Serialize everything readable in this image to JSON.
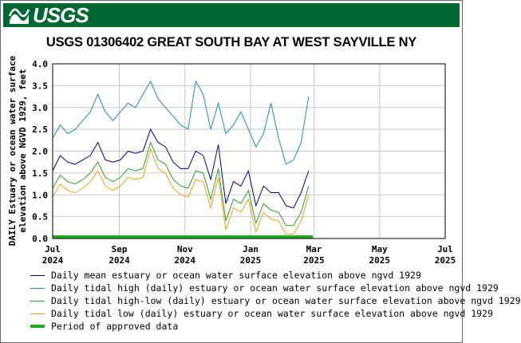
{
  "header": {
    "logo_text": "USGS",
    "logo_icon": "usgs-wave-icon",
    "background_color": "#006633"
  },
  "chart_data": {
    "type": "line",
    "title": "USGS 01306402 GREAT SOUTH BAY AT WEST SAYVILLE NY",
    "ylabel_line1": "DAILY Estuary or ocean water surface",
    "ylabel_line2": "elevation above NGVD 1929, feet",
    "ylim": [
      0.0,
      4.0
    ],
    "yticks": [
      0.0,
      0.5,
      1.0,
      1.5,
      2.0,
      2.5,
      3.0,
      3.5,
      4.0
    ],
    "ytick_labels": [
      "0.0",
      "0.5",
      "1.0",
      "1.5",
      "2.0",
      "2.5",
      "3.0",
      "3.5",
      "4.0"
    ],
    "xlim": [
      "2024-07-01",
      "2025-07-01"
    ],
    "xticks": [
      {
        "date": "2024-07-01",
        "month": "Jul",
        "year": "2024"
      },
      {
        "date": "2024-09-01",
        "month": "Sep",
        "year": "2024"
      },
      {
        "date": "2024-11-01",
        "month": "Nov",
        "year": "2024"
      },
      {
        "date": "2025-01-01",
        "month": "Jan",
        "year": "2025"
      },
      {
        "date": "2025-03-01",
        "month": "Mar",
        "year": "2025"
      },
      {
        "date": "2025-05-01",
        "month": "May",
        "year": "2025"
      },
      {
        "date": "2025-07-01",
        "month": "Jul",
        "year": "2025"
      }
    ],
    "grid": true,
    "legend_position": "bottom",
    "series": [
      {
        "name": "Daily mean estuary or ocean water surface elevation above ngvd 1929",
        "color": "#00008b",
        "x": [
          "2024-07-01",
          "2024-07-08",
          "2024-07-15",
          "2024-07-22",
          "2024-07-29",
          "2024-08-05",
          "2024-08-12",
          "2024-08-19",
          "2024-08-26",
          "2024-09-02",
          "2024-09-09",
          "2024-09-16",
          "2024-09-23",
          "2024-09-30",
          "2024-10-07",
          "2024-10-14",
          "2024-10-21",
          "2024-10-28",
          "2024-11-04",
          "2024-11-11",
          "2024-11-18",
          "2024-11-25",
          "2024-12-02",
          "2024-12-09",
          "2024-12-16",
          "2024-12-23",
          "2024-12-30",
          "2025-01-06",
          "2025-01-13",
          "2025-01-20",
          "2025-01-27",
          "2025-02-03",
          "2025-02-10",
          "2025-02-17",
          "2025-02-24"
        ],
        "y": [
          1.55,
          1.9,
          1.75,
          1.7,
          1.8,
          1.9,
          2.2,
          1.8,
          1.75,
          1.8,
          2.0,
          1.95,
          2.0,
          2.5,
          2.2,
          2.1,
          1.75,
          1.6,
          1.6,
          2.0,
          1.9,
          1.35,
          2.15,
          0.8,
          1.3,
          1.2,
          1.55,
          0.75,
          1.2,
          1.05,
          1.05,
          0.75,
          0.7,
          1.05,
          1.55
        ]
      },
      {
        "name": "Daily tidal high (daily) estuary or ocean water surface elevation above ngvd 1929",
        "color": "#1e88c8",
        "x": [
          "2024-07-01",
          "2024-07-08",
          "2024-07-15",
          "2024-07-22",
          "2024-07-29",
          "2024-08-05",
          "2024-08-12",
          "2024-08-19",
          "2024-08-26",
          "2024-09-02",
          "2024-09-09",
          "2024-09-16",
          "2024-09-23",
          "2024-09-30",
          "2024-10-07",
          "2024-10-14",
          "2024-10-21",
          "2024-10-28",
          "2024-11-04",
          "2024-11-11",
          "2024-11-18",
          "2024-11-25",
          "2024-12-02",
          "2024-12-09",
          "2024-12-16",
          "2024-12-23",
          "2024-12-30",
          "2025-01-06",
          "2025-01-13",
          "2025-01-20",
          "2025-01-27",
          "2025-02-03",
          "2025-02-10",
          "2025-02-17",
          "2025-02-24"
        ],
        "y": [
          2.3,
          2.6,
          2.4,
          2.5,
          2.7,
          2.9,
          3.3,
          2.9,
          2.7,
          2.9,
          3.1,
          3.0,
          3.3,
          3.6,
          3.2,
          3.0,
          2.8,
          2.6,
          2.5,
          3.6,
          3.3,
          2.5,
          3.1,
          2.4,
          2.6,
          2.9,
          2.5,
          2.1,
          2.4,
          3.1,
          2.3,
          1.7,
          1.8,
          2.2,
          3.25
        ]
      },
      {
        "name": "Daily tidal high-low (daily) estuary or ocean water surface elevation above ngvd 1929",
        "color": "#2e9e2e",
        "x": [
          "2024-07-01",
          "2024-07-08",
          "2024-07-15",
          "2024-07-22",
          "2024-07-29",
          "2024-08-05",
          "2024-08-12",
          "2024-08-19",
          "2024-08-26",
          "2024-09-02",
          "2024-09-09",
          "2024-09-16",
          "2024-09-23",
          "2024-09-30",
          "2024-10-07",
          "2024-10-14",
          "2024-10-21",
          "2024-10-28",
          "2024-11-04",
          "2024-11-11",
          "2024-11-18",
          "2024-11-25",
          "2024-12-02",
          "2024-12-09",
          "2024-12-16",
          "2024-12-23",
          "2024-12-30",
          "2025-01-06",
          "2025-01-13",
          "2025-01-20",
          "2025-01-27",
          "2025-02-03",
          "2025-02-10",
          "2025-02-17",
          "2025-02-24"
        ],
        "y": [
          1.15,
          1.45,
          1.3,
          1.25,
          1.35,
          1.5,
          1.75,
          1.4,
          1.3,
          1.4,
          1.6,
          1.55,
          1.6,
          2.2,
          1.8,
          1.7,
          1.35,
          1.2,
          1.15,
          1.55,
          1.5,
          0.9,
          1.6,
          0.4,
          0.9,
          0.8,
          1.1,
          0.35,
          0.8,
          0.65,
          0.6,
          0.3,
          0.3,
          0.6,
          1.2
        ]
      },
      {
        "name": "Daily tidal low (daily) estuary or ocean water surface elevation above ngvd 1929",
        "color": "#e8a317",
        "x": [
          "2024-07-01",
          "2024-07-08",
          "2024-07-15",
          "2024-07-22",
          "2024-07-29",
          "2024-08-05",
          "2024-08-12",
          "2024-08-19",
          "2024-08-26",
          "2024-09-02",
          "2024-09-09",
          "2024-09-16",
          "2024-09-23",
          "2024-09-30",
          "2024-10-07",
          "2024-10-14",
          "2024-10-21",
          "2024-10-28",
          "2024-11-04",
          "2024-11-11",
          "2024-11-18",
          "2024-11-25",
          "2024-12-02",
          "2024-12-09",
          "2024-12-16",
          "2024-12-23",
          "2024-12-30",
          "2025-01-06",
          "2025-01-13",
          "2025-01-20",
          "2025-01-27",
          "2025-02-03",
          "2025-02-10",
          "2025-02-17",
          "2025-02-24"
        ],
        "y": [
          0.95,
          1.25,
          1.1,
          1.05,
          1.15,
          1.3,
          1.55,
          1.2,
          1.1,
          1.2,
          1.4,
          1.35,
          1.4,
          2.05,
          1.6,
          1.5,
          1.15,
          1.0,
          0.95,
          1.35,
          1.3,
          0.7,
          1.4,
          0.2,
          0.7,
          0.6,
          0.9,
          0.15,
          0.6,
          0.45,
          0.4,
          0.1,
          0.1,
          0.4,
          1.0
        ]
      }
    ],
    "approved_period": {
      "name": "Period of approved data",
      "color": "#22aa22",
      "start": "2024-07-01",
      "end": "2025-02-28"
    }
  }
}
